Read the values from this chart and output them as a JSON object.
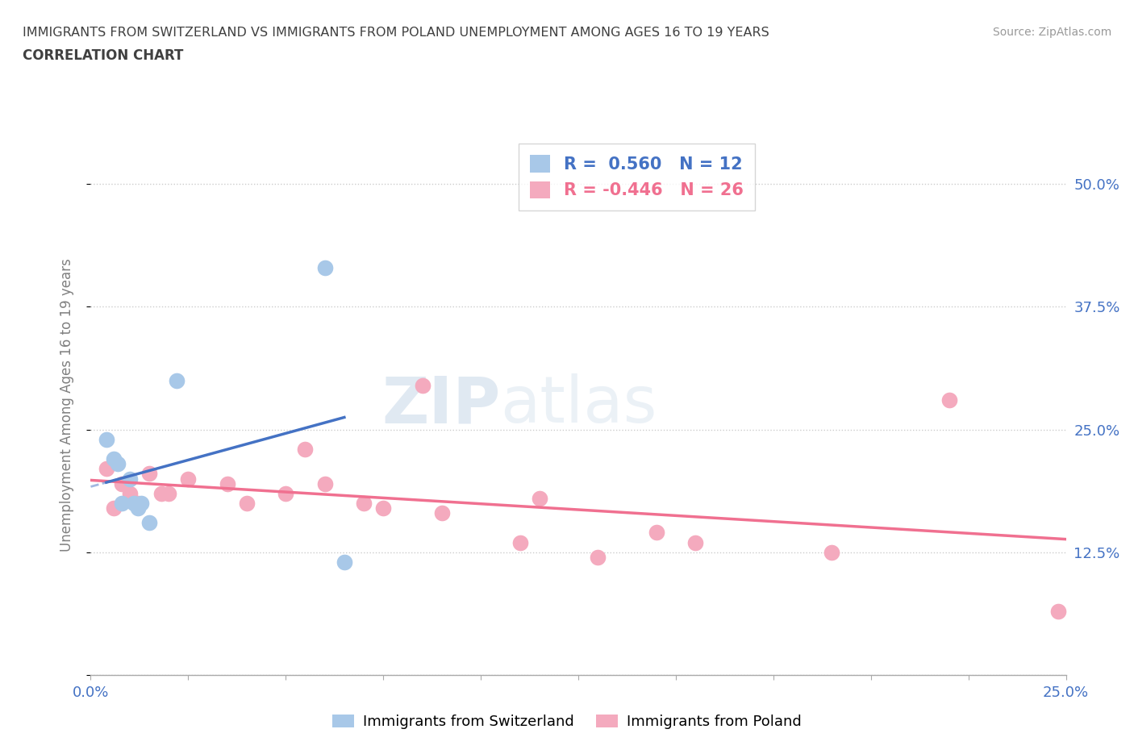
{
  "title_line1": "IMMIGRANTS FROM SWITZERLAND VS IMMIGRANTS FROM POLAND UNEMPLOYMENT AMONG AGES 16 TO 19 YEARS",
  "title_line2": "CORRELATION CHART",
  "source_text": "Source: ZipAtlas.com",
  "ylabel": "Unemployment Among Ages 16 to 19 years",
  "xlim": [
    0.0,
    0.25
  ],
  "ylim": [
    0.0,
    0.55
  ],
  "xtick_positions": [
    0.0,
    0.025,
    0.05,
    0.075,
    0.1,
    0.125,
    0.15,
    0.175,
    0.2,
    0.225,
    0.25
  ],
  "ytick_positions": [
    0.0,
    0.125,
    0.25,
    0.375,
    0.5
  ],
  "ytick_labels_right": [
    "",
    "12.5%",
    "25.0%",
    "37.5%",
    "50.0%"
  ],
  "swiss_color": "#a8c8e8",
  "poland_color": "#f4aabe",
  "swiss_line_color": "#4472c4",
  "poland_line_color": "#f07090",
  "r_swiss": 0.56,
  "n_swiss": 12,
  "r_poland": -0.446,
  "n_poland": 26,
  "swiss_x": [
    0.004,
    0.006,
    0.007,
    0.008,
    0.01,
    0.011,
    0.012,
    0.013,
    0.015,
    0.022,
    0.06,
    0.065
  ],
  "swiss_y": [
    0.24,
    0.22,
    0.215,
    0.175,
    0.2,
    0.175,
    0.17,
    0.175,
    0.155,
    0.3,
    0.415,
    0.115
  ],
  "poland_x": [
    0.004,
    0.006,
    0.008,
    0.01,
    0.012,
    0.015,
    0.018,
    0.02,
    0.025,
    0.035,
    0.04,
    0.05,
    0.055,
    0.06,
    0.07,
    0.075,
    0.085,
    0.09,
    0.11,
    0.115,
    0.13,
    0.145,
    0.155,
    0.19,
    0.22,
    0.248
  ],
  "poland_y": [
    0.21,
    0.17,
    0.195,
    0.185,
    0.175,
    0.205,
    0.185,
    0.185,
    0.2,
    0.195,
    0.175,
    0.185,
    0.23,
    0.195,
    0.175,
    0.17,
    0.295,
    0.165,
    0.135,
    0.18,
    0.12,
    0.145,
    0.135,
    0.125,
    0.28,
    0.065
  ],
  "watermark_zip": "ZIP",
  "watermark_atlas": "atlas",
  "grid_color": "#cccccc",
  "background_color": "#ffffff",
  "title_color": "#404040"
}
